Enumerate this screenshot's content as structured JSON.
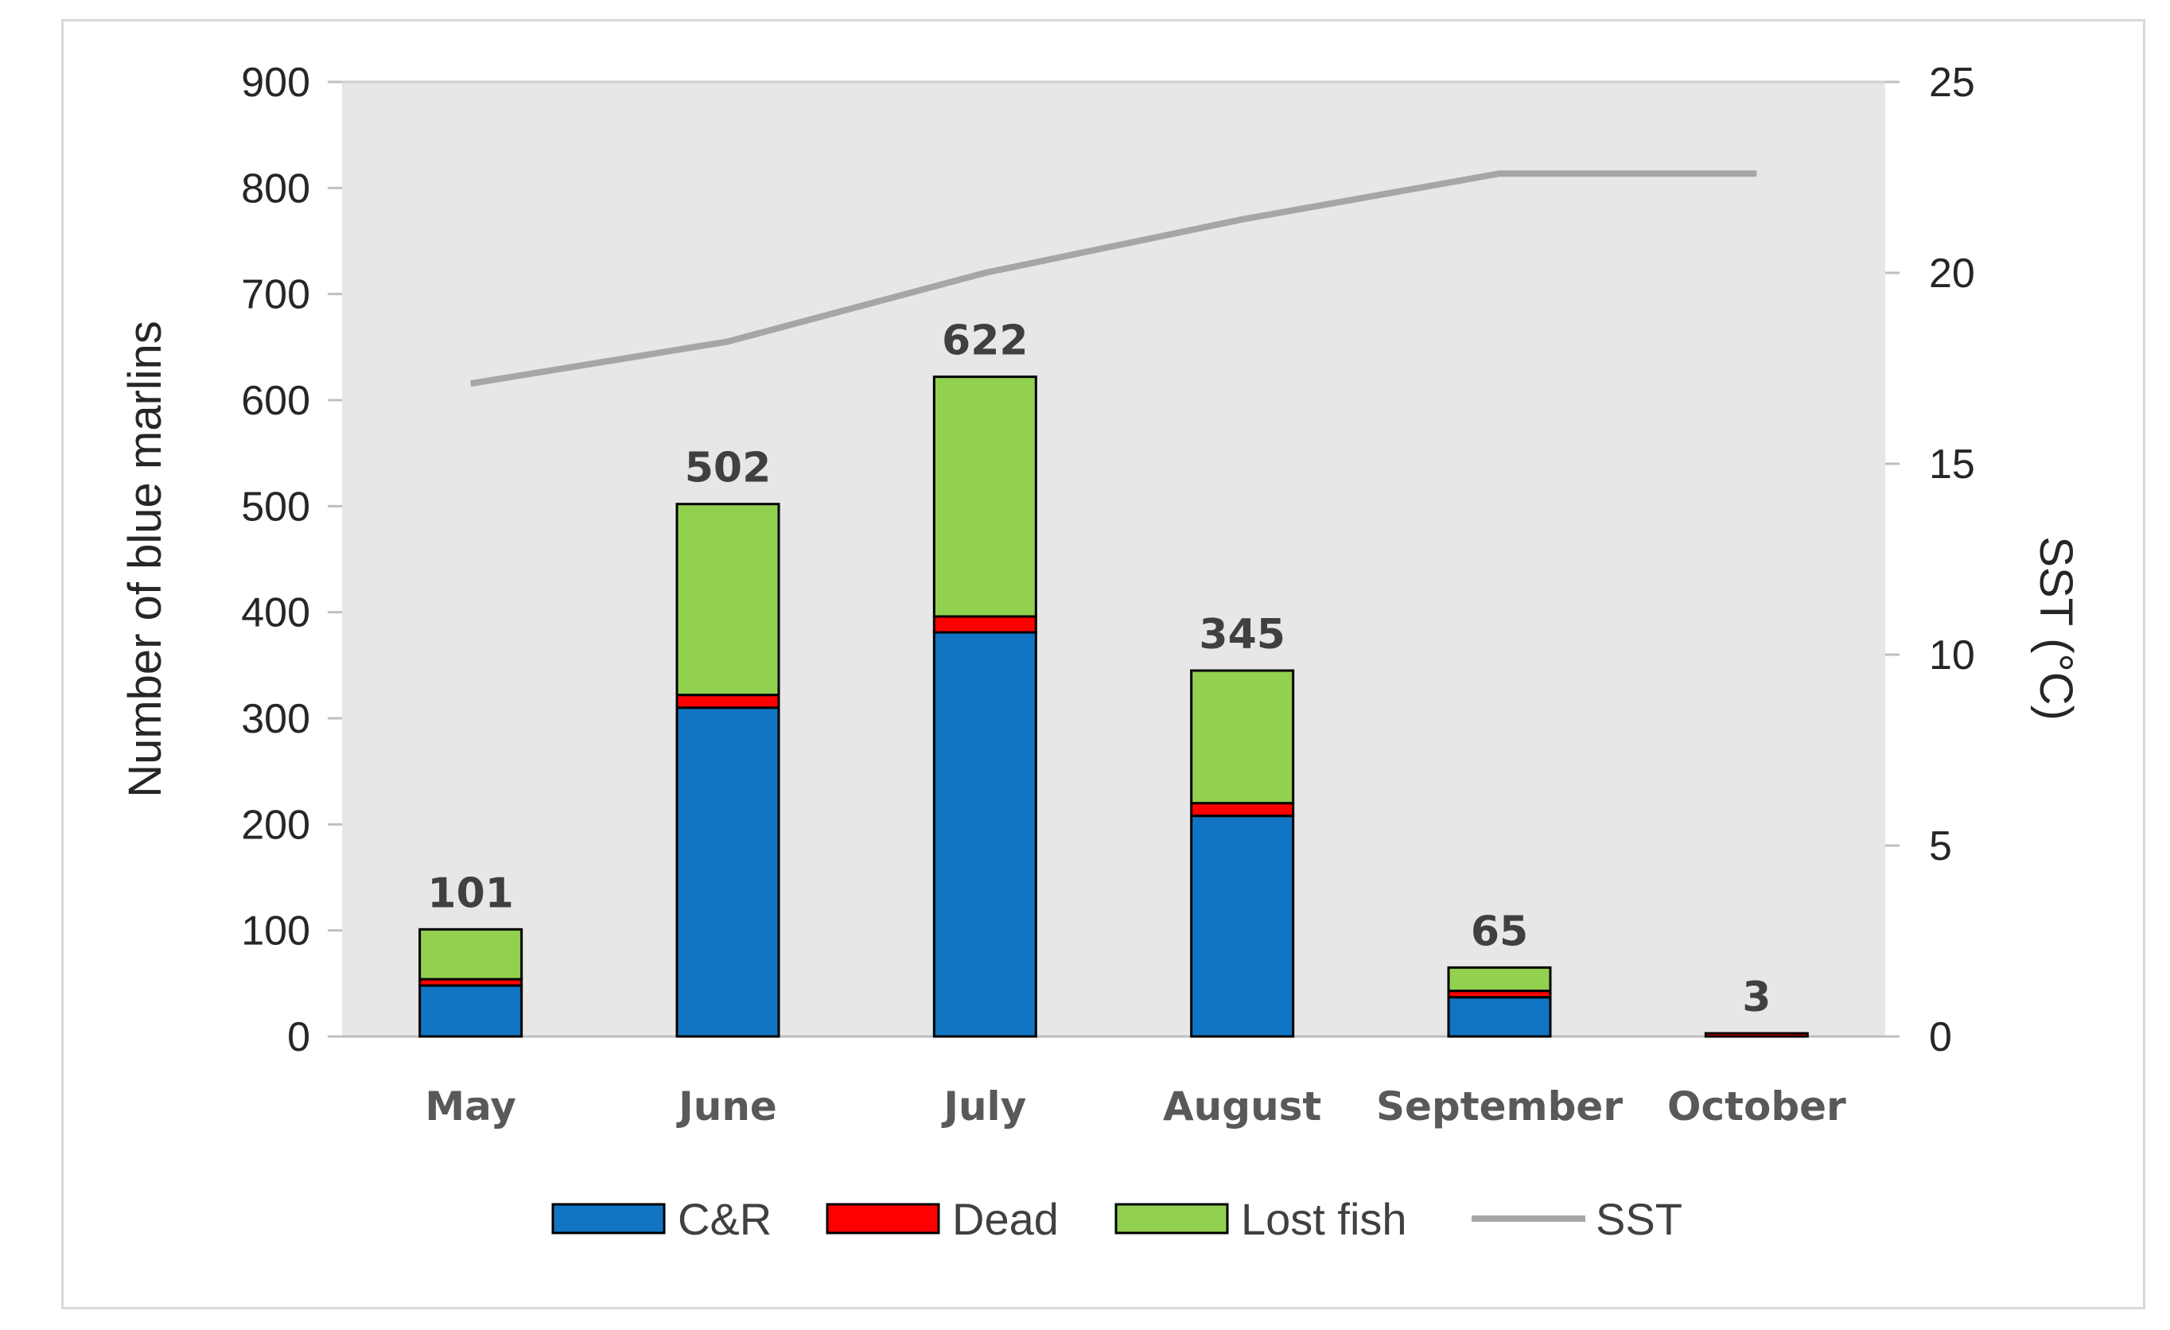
{
  "chart_data": {
    "type": "bar",
    "stacked": true,
    "categories": [
      "May",
      "June",
      "July",
      "August",
      "September",
      "October"
    ],
    "series": [
      {
        "name": "C&R",
        "color": "#1175C4",
        "values": [
          48,
          310,
          381,
          208,
          37,
          0
        ]
      },
      {
        "name": "Dead",
        "color": "#FF0000",
        "values": [
          6,
          12,
          15,
          12,
          6,
          3
        ]
      },
      {
        "name": "Lost fish",
        "color": "#92D050",
        "values": [
          47,
          180,
          226,
          125,
          22,
          0
        ]
      }
    ],
    "line_series": {
      "name": "SST",
      "color": "#A6A6A6",
      "axis": "right",
      "values": [
        17.1,
        18.2,
        20.0,
        21.4,
        22.6,
        22.6
      ]
    },
    "totals": [
      "101",
      "502",
      "622",
      "345",
      "65",
      "3"
    ],
    "ylabel": "Number of blue marlins",
    "y2label": "SST (°C)",
    "ylim": [
      0,
      900
    ],
    "yticks": [
      "0",
      "100",
      "200",
      "300",
      "400",
      "500",
      "600",
      "700",
      "800",
      "900"
    ],
    "y2lim": [
      0,
      25
    ],
    "y2ticks": [
      "0",
      "5",
      "10",
      "15",
      "20",
      "25"
    ],
    "legend_position": "bottom",
    "plot_background": "#E7E7E7"
  }
}
